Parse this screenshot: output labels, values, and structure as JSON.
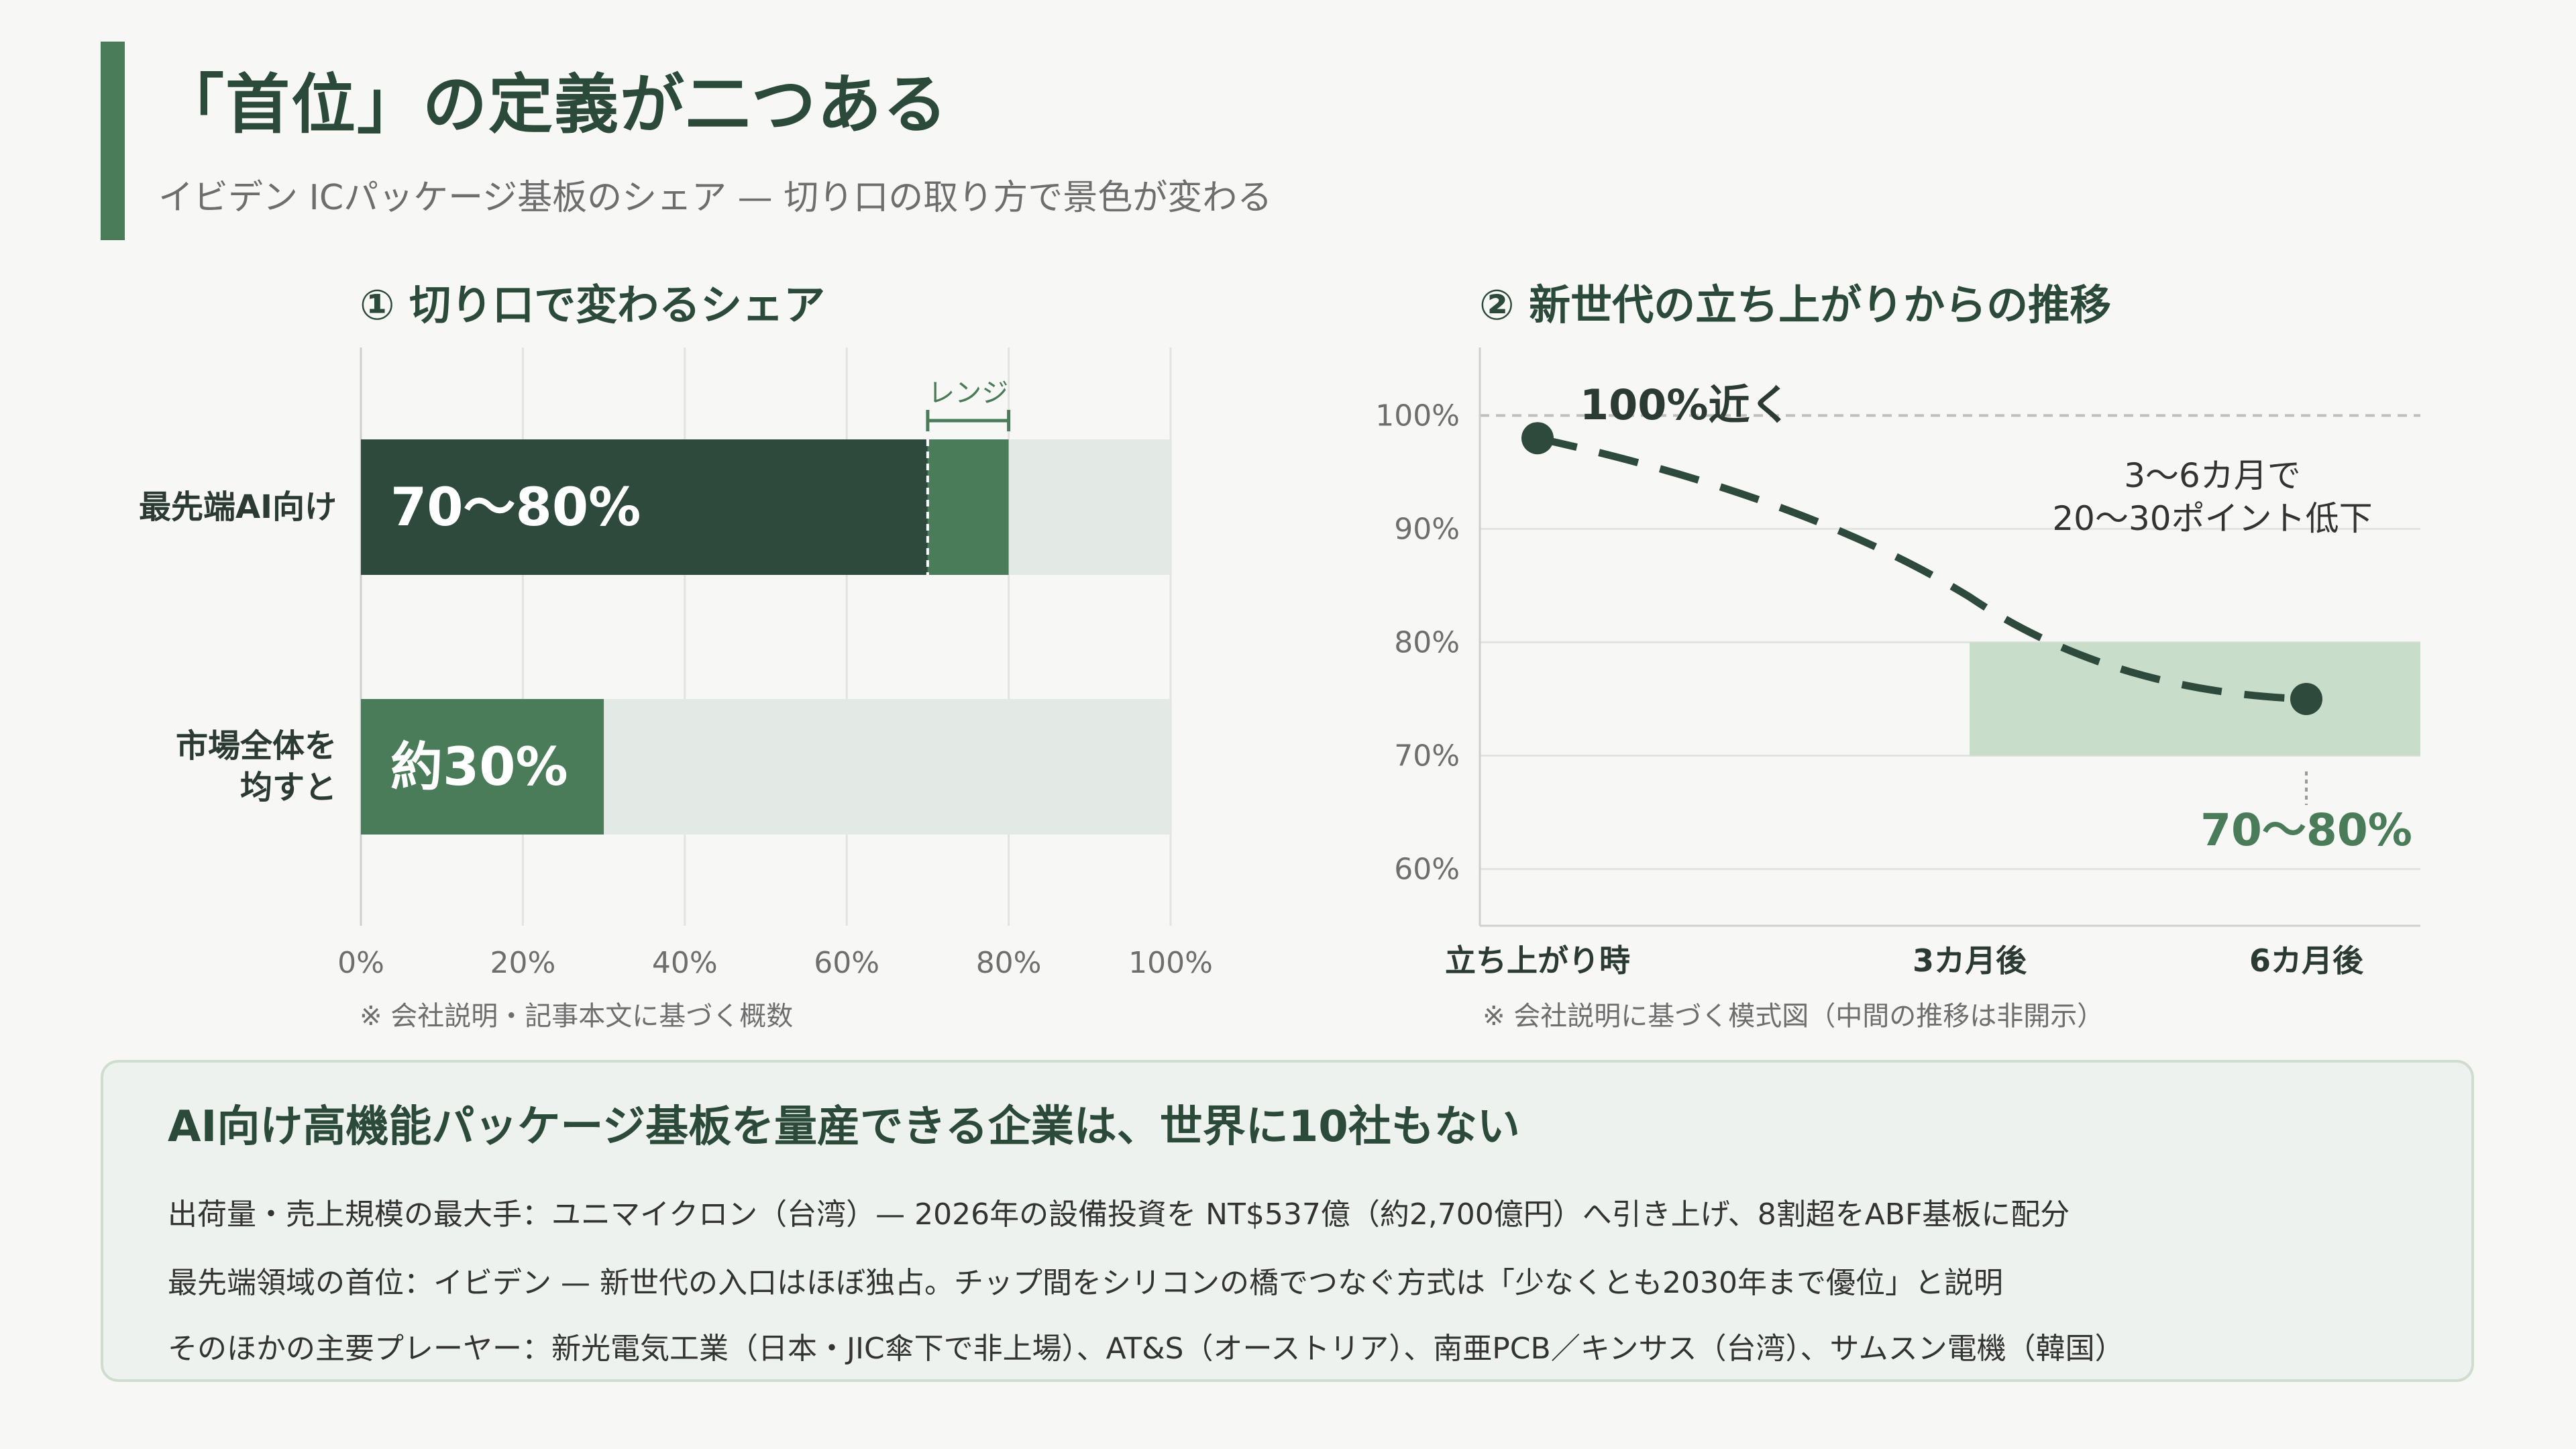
{
  "header": {
    "title": "「首位」の定義が二つある",
    "subtitle": "イビデン ICパッケージ基板のシェア — 切り口の取り方で景色が変わる"
  },
  "chart_data": [
    {
      "type": "bar",
      "title": "① 切り口で変わるシェア",
      "orientation": "horizontal",
      "categories": [
        "最先端AI向け",
        "市場全体を均すと"
      ],
      "category_lines": [
        [
          "最先端AI向け"
        ],
        [
          "市場全体を",
          "均すと"
        ]
      ],
      "series": [
        {
          "name": "",
          "values": [
            70,
            30
          ]
        }
      ],
      "range": {
        "category": "最先端AI向け",
        "from": 70,
        "to": 80,
        "label": "レンジ"
      },
      "data_labels": [
        "70〜80%",
        "約30%"
      ],
      "xlim": [
        0,
        100
      ],
      "xticks": [
        "0%",
        "20%",
        "40%",
        "60%",
        "80%",
        "100%"
      ],
      "xtick_values": [
        0,
        20,
        40,
        60,
        80,
        100
      ],
      "grid": true,
      "note": "※ 会社説明・記事本文に基づく概数",
      "colors": {
        "dark": "#2d4a3c",
        "mid": "#4a7c59",
        "light": "#e3e9e4"
      }
    },
    {
      "type": "line",
      "title": "② 新世代の立ち上がりからの推移",
      "x": [
        "立ち上がり時",
        "3カ月後",
        "6カ月後"
      ],
      "series": [
        {
          "name": "",
          "values": [
            98,
            84,
            75
          ],
          "style": "dashed"
        }
      ],
      "endpoints": [
        98,
        75
      ],
      "reference_line": {
        "value": 100,
        "style": "dashed"
      },
      "band": {
        "from": 70,
        "to": 80,
        "x_start": "3カ月後"
      },
      "annotations": {
        "start": "100%近く",
        "end": "70〜80%",
        "drop_line1": "3〜6カ月で",
        "drop_line2": "20〜30ポイント低下"
      },
      "ylim": [
        55,
        106
      ],
      "yticks": [
        "100%",
        "90%",
        "80%",
        "70%",
        "60%"
      ],
      "ytick_values": [
        100,
        90,
        80,
        70,
        60
      ],
      "grid": true,
      "note": "※ 会社説明に基づく模式図（中間の推移は非開示）",
      "colors": {
        "line": "#2d4a3c",
        "band": "#c8ddca",
        "accent": "#4a7c59"
      }
    }
  ],
  "summary": {
    "heading": "AI向け高機能パッケージ基板を量産できる企業は、世界に10社もない",
    "lines": [
      "出荷量・売上規模の最大手：ユニマイクロン（台湾）— 2026年の設備投資を NT$537億（約2,700億円）へ引き上げ、8割超をABF基板に配分",
      "最先端領域の首位：イビデン — 新世代の入口はほぼ独占。チップ間をシリコンの橋でつなぐ方式は「少なくとも2030年まで優位」と説明",
      "そのほかの主要プレーヤー：新光電気工業（日本・JIC傘下で非上場）、AT&S（オーストリア）、南亜PCB／キンサス（台湾）、サムスン電機（韓国）"
    ]
  },
  "colors": {
    "accent": "#4a7c59",
    "title": "#2b4a3a"
  }
}
